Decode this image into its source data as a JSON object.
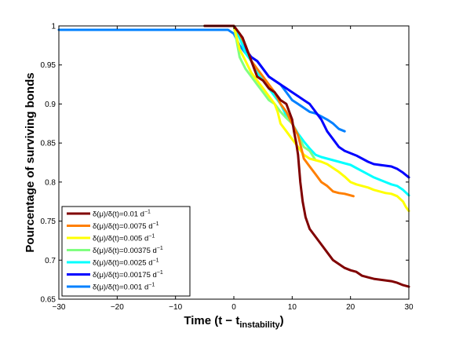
{
  "chart_data": {
    "type": "line",
    "title": "",
    "xlabel": "Time (t − t",
    "xlabel_sub": "instability",
    "xlabel_end": ")",
    "ylabel": "Pourcentage of surviving bonds",
    "xlim": [
      -30,
      30
    ],
    "ylim": [
      0.65,
      1
    ],
    "xticks": [
      -30,
      -20,
      -10,
      0,
      10,
      20,
      30
    ],
    "yticks": [
      0.65,
      0.7,
      0.75,
      0.8,
      0.85,
      0.9,
      0.95,
      1
    ],
    "ytick_labels": [
      "0.65",
      "0.7",
      "0.75",
      "0.8",
      "0.85",
      "0.9",
      "0.95",
      "1"
    ],
    "grid": false,
    "legend_position": "bottom-left",
    "series": [
      {
        "name": "δ(μ)/δ(t)=0.01 d",
        "unit_sup": "−1",
        "color": "#800000",
        "points": [
          [
            -5,
            1
          ],
          [
            0,
            1
          ],
          [
            1,
            0.99
          ],
          [
            1.5,
            0.985
          ],
          [
            2,
            0.975
          ],
          [
            2.5,
            0.965
          ],
          [
            3,
            0.955
          ],
          [
            3.5,
            0.945
          ],
          [
            4,
            0.935
          ],
          [
            5,
            0.93
          ],
          [
            6,
            0.92
          ],
          [
            7,
            0.915
          ],
          [
            8,
            0.905
          ],
          [
            9,
            0.9
          ],
          [
            9.5,
            0.89
          ],
          [
            10,
            0.88
          ],
          [
            10.3,
            0.865
          ],
          [
            10.7,
            0.85
          ],
          [
            11,
            0.835
          ],
          [
            11.4,
            0.8
          ],
          [
            11.8,
            0.775
          ],
          [
            12.3,
            0.755
          ],
          [
            13,
            0.74
          ],
          [
            14,
            0.73
          ],
          [
            15,
            0.72
          ],
          [
            16,
            0.71
          ],
          [
            17,
            0.7
          ],
          [
            18,
            0.695
          ],
          [
            19,
            0.69
          ],
          [
            20,
            0.687
          ],
          [
            21,
            0.685
          ],
          [
            22,
            0.68
          ],
          [
            23,
            0.678
          ],
          [
            24,
            0.676
          ],
          [
            25,
            0.675
          ],
          [
            26,
            0.674
          ],
          [
            27,
            0.673
          ],
          [
            28,
            0.671
          ],
          [
            29,
            0.668
          ],
          [
            30,
            0.666
          ]
        ]
      },
      {
        "name": "δ(μ)/δ(t)=0.0075 d",
        "unit_sup": "−1",
        "color": "#ff7f00",
        "points": [
          [
            -5,
            1
          ],
          [
            0,
            1
          ],
          [
            1,
            0.99
          ],
          [
            2,
            0.975
          ],
          [
            3,
            0.955
          ],
          [
            4,
            0.945
          ],
          [
            5,
            0.935
          ],
          [
            6,
            0.925
          ],
          [
            7,
            0.915
          ],
          [
            8,
            0.9
          ],
          [
            9,
            0.89
          ],
          [
            10,
            0.875
          ],
          [
            11,
            0.86
          ],
          [
            11.5,
            0.845
          ],
          [
            12,
            0.83
          ],
          [
            13,
            0.82
          ],
          [
            14,
            0.81
          ],
          [
            15,
            0.8
          ],
          [
            16,
            0.795
          ],
          [
            17,
            0.788
          ],
          [
            18,
            0.786
          ],
          [
            19,
            0.785
          ],
          [
            20,
            0.783
          ],
          [
            20.5,
            0.782
          ]
        ]
      },
      {
        "name": "δ(μ)/δ(t)=0.005 d",
        "unit_sup": "−1",
        "color": "#ffff00",
        "points": [
          [
            -5,
            1
          ],
          [
            0,
            1
          ],
          [
            1,
            0.97
          ],
          [
            2,
            0.955
          ],
          [
            3,
            0.94
          ],
          [
            4,
            0.93
          ],
          [
            5,
            0.92
          ],
          [
            6,
            0.91
          ],
          [
            7,
            0.9
          ],
          [
            7.5,
            0.89
          ],
          [
            8,
            0.875
          ],
          [
            9,
            0.865
          ],
          [
            10,
            0.855
          ],
          [
            11,
            0.845
          ],
          [
            12,
            0.835
          ],
          [
            13,
            0.83
          ],
          [
            14,
            0.828
          ],
          [
            15,
            0.826
          ],
          [
            16,
            0.823
          ],
          [
            17,
            0.818
          ],
          [
            18,
            0.813
          ],
          [
            19,
            0.807
          ],
          [
            20,
            0.8
          ],
          [
            21,
            0.797
          ],
          [
            22,
            0.795
          ],
          [
            23,
            0.793
          ],
          [
            24,
            0.79
          ],
          [
            25,
            0.788
          ],
          [
            26,
            0.786
          ],
          [
            27,
            0.785
          ],
          [
            28,
            0.782
          ],
          [
            29,
            0.775
          ],
          [
            29.5,
            0.768
          ],
          [
            30,
            0.763
          ]
        ]
      },
      {
        "name": "δ(μ)/δ(t)=0.00375 d",
        "unit_sup": "−1",
        "color": "#80ff80",
        "points": [
          [
            -5,
            1
          ],
          [
            0,
            1
          ],
          [
            1,
            0.96
          ],
          [
            2,
            0.945
          ],
          [
            3,
            0.935
          ],
          [
            4,
            0.925
          ],
          [
            5,
            0.915
          ],
          [
            6,
            0.905
          ],
          [
            7,
            0.9
          ],
          [
            8,
            0.89
          ],
          [
            9,
            0.882
          ],
          [
            10,
            0.875
          ],
          [
            11,
            0.86
          ],
          [
            12,
            0.845
          ],
          [
            13,
            0.84
          ],
          [
            14,
            0.828
          ]
        ]
      },
      {
        "name": "δ(μ)/δ(t)=0.0025 d",
        "unit_sup": "−1",
        "color": "#00ffff",
        "points": [
          [
            -5,
            1
          ],
          [
            0,
            1
          ],
          [
            1,
            0.985
          ],
          [
            2,
            0.965
          ],
          [
            3,
            0.955
          ],
          [
            4,
            0.94
          ],
          [
            5,
            0.93
          ],
          [
            6,
            0.92
          ],
          [
            7,
            0.91
          ],
          [
            8,
            0.9
          ],
          [
            9,
            0.885
          ],
          [
            10,
            0.875
          ],
          [
            11,
            0.862
          ],
          [
            12,
            0.852
          ],
          [
            13,
            0.843
          ],
          [
            14,
            0.835
          ],
          [
            15,
            0.832
          ],
          [
            16,
            0.83
          ],
          [
            17,
            0.828
          ],
          [
            18,
            0.826
          ],
          [
            19,
            0.824
          ],
          [
            20,
            0.822
          ],
          [
            21,
            0.818
          ],
          [
            22,
            0.814
          ],
          [
            23,
            0.81
          ],
          [
            24,
            0.806
          ],
          [
            25,
            0.803
          ],
          [
            26,
            0.8
          ],
          [
            27,
            0.797
          ],
          [
            28,
            0.795
          ],
          [
            29,
            0.79
          ],
          [
            30,
            0.783
          ]
        ]
      },
      {
        "name": "δ(μ)/δ(t)=0.00175 d",
        "unit_sup": "−1",
        "color": "#0000ff",
        "points": [
          [
            -5,
            1
          ],
          [
            0,
            1
          ],
          [
            1,
            0.985
          ],
          [
            2,
            0.97
          ],
          [
            3,
            0.96
          ],
          [
            4,
            0.955
          ],
          [
            5,
            0.945
          ],
          [
            6,
            0.935
          ],
          [
            7,
            0.93
          ],
          [
            8,
            0.925
          ],
          [
            9,
            0.92
          ],
          [
            10,
            0.915
          ],
          [
            11,
            0.91
          ],
          [
            12,
            0.905
          ],
          [
            13,
            0.9
          ],
          [
            14,
            0.89
          ],
          [
            15,
            0.88
          ],
          [
            16,
            0.865
          ],
          [
            17,
            0.855
          ],
          [
            18,
            0.845
          ],
          [
            19,
            0.84
          ],
          [
            20,
            0.837
          ],
          [
            21,
            0.834
          ],
          [
            22,
            0.83
          ],
          [
            23,
            0.826
          ],
          [
            24,
            0.823
          ],
          [
            25,
            0.822
          ],
          [
            26,
            0.821
          ],
          [
            27,
            0.82
          ],
          [
            28,
            0.817
          ],
          [
            29,
            0.812
          ],
          [
            30,
            0.806
          ]
        ]
      },
      {
        "name": "δ(μ)/δ(t)=0.001 d",
        "unit_sup": "−1",
        "color": "#0080ff",
        "points": [
          [
            -30,
            0.995
          ],
          [
            -10,
            0.995
          ],
          [
            -5,
            0.995
          ],
          [
            -1,
            0.995
          ],
          [
            0,
            0.99
          ],
          [
            1,
            0.975
          ],
          [
            2,
            0.965
          ],
          [
            3,
            0.96
          ],
          [
            4,
            0.955
          ],
          [
            5,
            0.945
          ],
          [
            6,
            0.935
          ],
          [
            7,
            0.93
          ],
          [
            8,
            0.925
          ],
          [
            9,
            0.915
          ],
          [
            10,
            0.905
          ],
          [
            11,
            0.9
          ],
          [
            12,
            0.895
          ],
          [
            13,
            0.89
          ],
          [
            14,
            0.888
          ],
          [
            15,
            0.884
          ],
          [
            16,
            0.88
          ],
          [
            17,
            0.875
          ],
          [
            18,
            0.868
          ],
          [
            19,
            0.865
          ]
        ]
      }
    ]
  }
}
